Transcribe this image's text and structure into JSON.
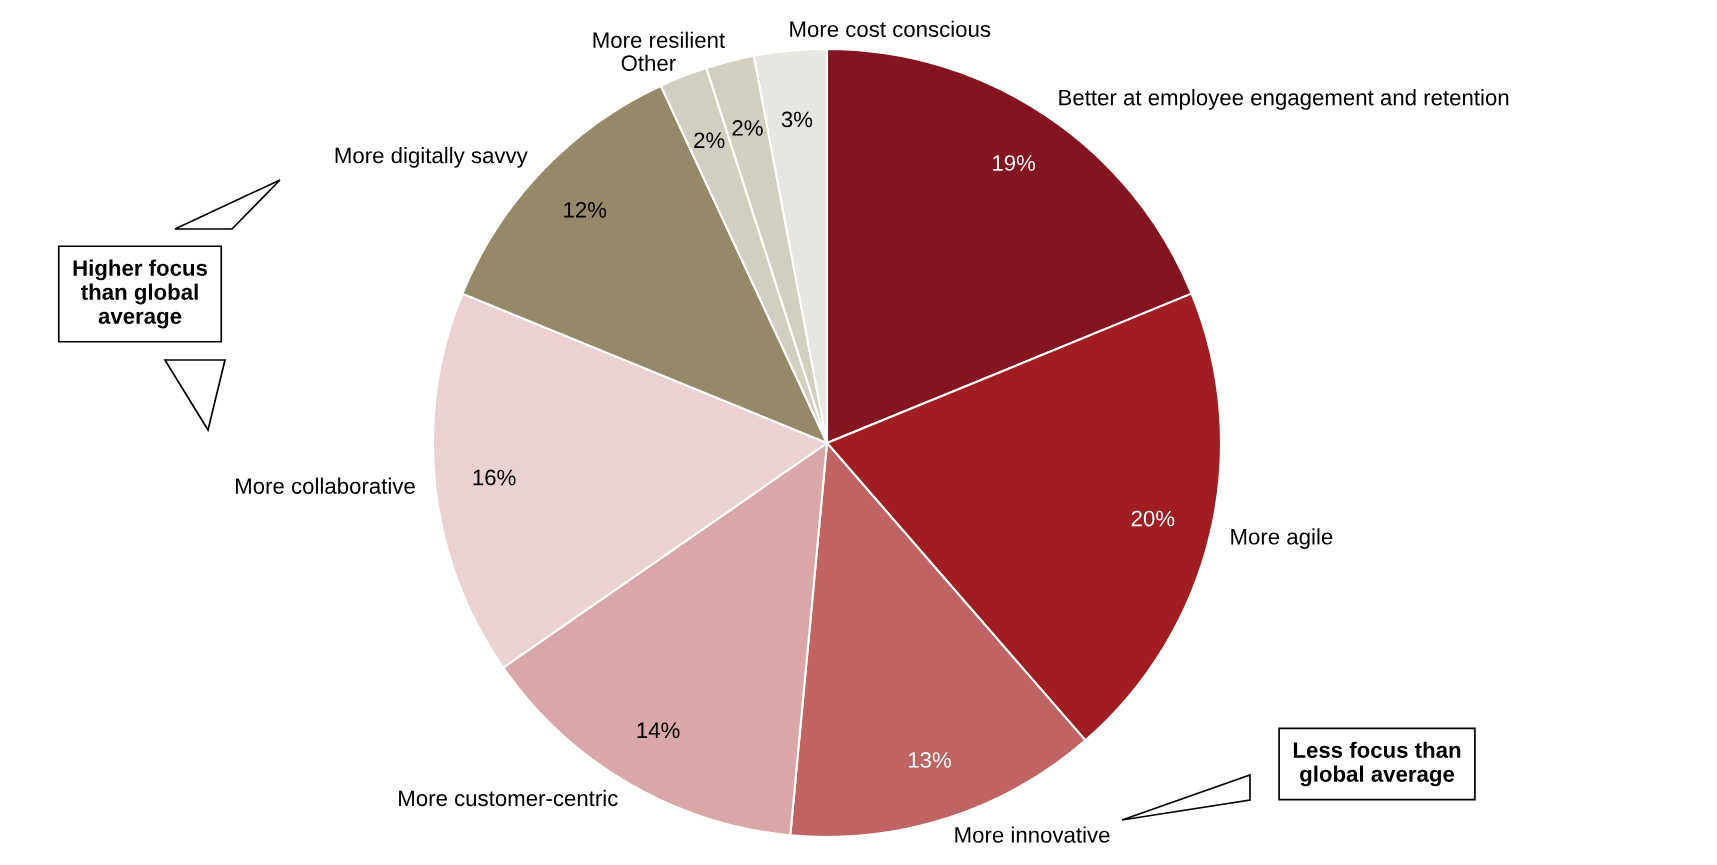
{
  "chart_data": {
    "type": "pie",
    "categories": [
      "Better at employee engagement and retention",
      "More agile",
      "More innovative",
      "More customer-centric",
      "More collaborative",
      "More digitally savvy",
      "Other",
      "More resilient",
      "More cost conscious"
    ],
    "values": [
      19,
      20,
      13,
      14,
      16,
      12,
      2,
      2,
      3
    ],
    "value_labels": [
      "19%",
      "20%",
      "13%",
      "14%",
      "16%",
      "12%",
      "2%",
      "2%",
      "3%"
    ],
    "colors": [
      "#84141f",
      "#a01e22",
      "#c06463",
      "#d9a7a7",
      "#ecd1d3",
      "#96896a",
      "#d3cfc0",
      "#d3cfc0",
      "#e8e6e0"
    ],
    "annotations": [
      "Higher focus\nthan global\naverage",
      "Less focus than\nglobal average"
    ]
  }
}
